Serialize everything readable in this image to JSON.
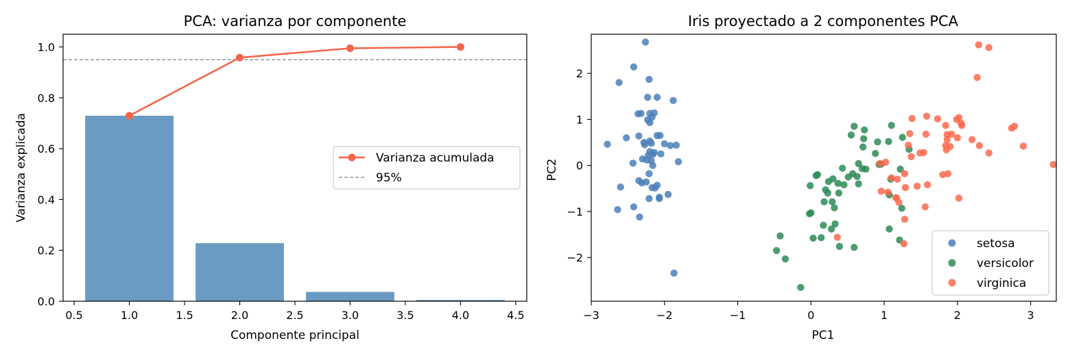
{
  "chart_data": [
    {
      "type": "bar",
      "title": "PCA: varianza por componente",
      "xlabel": "Componente principal",
      "ylabel": "Varianza explicada",
      "xlim": [
        0.4,
        4.6
      ],
      "ylim": [
        0,
        1.05
      ],
      "x_ticks": [
        "0.5",
        "1.0",
        "1.5",
        "2.0",
        "2.5",
        "3.0",
        "3.5",
        "4.0",
        "4.5"
      ],
      "y_ticks": [
        "0.0",
        "0.2",
        "0.4",
        "0.6",
        "0.8",
        "1.0"
      ],
      "categories": [
        1,
        2,
        3,
        4
      ],
      "series": [
        {
          "values": [
            0.7296,
            0.2285,
            0.0367,
            0.0052
          ],
          "color": "#4682b4"
        },
        {
          "name": "Varianza acumulada",
          "values": [
            0.7296,
            0.9581,
            0.9948,
            1.0
          ],
          "color": "#f4644a"
        }
      ],
      "reference_line": {
        "name": "95%",
        "value": 0.95,
        "color": "#808080"
      },
      "legend_position": "center-right"
    },
    {
      "type": "scatter",
      "title": "Iris proyectado a 2 componentes PCA",
      "xlabel": "PC1",
      "ylabel": "PC2",
      "xlim": [
        -3.0,
        3.35
      ],
      "ylim": [
        -2.95,
        2.85
      ],
      "x_ticks": [
        "−3",
        "−2",
        "−1",
        "0",
        "1",
        "2",
        "3"
      ],
      "y_ticks": [
        "−2",
        "−1",
        "0",
        "1",
        "2"
      ],
      "legend_position": "bottom-right",
      "series": [
        {
          "name": "setosa",
          "color": "#4c7fb8",
          "points": [
            [
              -2.26,
              2.68
            ],
            [
              -2.42,
              2.14
            ],
            [
              -2.62,
              1.8
            ],
            [
              -2.21,
              1.87
            ],
            [
              -2.32,
              1.13
            ],
            [
              -2.36,
              1.12
            ],
            [
              -2.2,
              1.13
            ],
            [
              -2.14,
              1.14
            ],
            [
              -2.23,
              1.48
            ],
            [
              -2.1,
              1.48
            ],
            [
              -1.88,
              1.41
            ],
            [
              -2.2,
              0.93
            ],
            [
              -2.23,
              0.99
            ],
            [
              -2.17,
              1.05
            ],
            [
              -2.35,
              0.64
            ],
            [
              -2.52,
              0.6
            ],
            [
              -2.78,
              0.46
            ],
            [
              -2.1,
              0.65
            ],
            [
              -2.06,
              0.65
            ],
            [
              -2.28,
              0.5
            ],
            [
              -2.27,
              0.45
            ],
            [
              -2.2,
              0.53
            ],
            [
              -2.18,
              0.48
            ],
            [
              -2.0,
              0.47
            ],
            [
              -1.92,
              0.43
            ],
            [
              -1.84,
              0.44
            ],
            [
              -2.05,
              0.25
            ],
            [
              -2.16,
              0.24
            ],
            [
              -2.22,
              0.22
            ],
            [
              -2.2,
              0.3
            ],
            [
              -2.14,
              0.28
            ],
            [
              -2.3,
              0.14
            ],
            [
              -2.24,
              0.12
            ],
            [
              -2.43,
              0.05
            ],
            [
              -2.18,
              0.1
            ],
            [
              -2.16,
              0.0
            ],
            [
              -1.81,
              0.08
            ],
            [
              -2.21,
              -0.18
            ],
            [
              -2.6,
              -0.47
            ],
            [
              -2.35,
              -0.33
            ],
            [
              -2.31,
              -0.38
            ],
            [
              -2.25,
              -0.36
            ],
            [
              -2.17,
              -0.48
            ],
            [
              -2.13,
              -0.49
            ],
            [
              -2.1,
              -0.43
            ],
            [
              -2.07,
              -0.69
            ],
            [
              -2.07,
              -0.72
            ],
            [
              -1.95,
              -0.63
            ],
            [
              -2.21,
              -0.72
            ],
            [
              -2.42,
              -0.9
            ],
            [
              -2.64,
              -0.96
            ],
            [
              -2.34,
              -1.12
            ],
            [
              -1.87,
              -2.34
            ]
          ]
        },
        {
          "name": "versicolor",
          "color": "#2e8b57",
          "points": [
            [
              0.59,
              0.85
            ],
            [
              0.73,
              0.77
            ],
            [
              1.1,
              0.87
            ],
            [
              0.55,
              0.66
            ],
            [
              0.72,
              0.58
            ],
            [
              1.25,
              0.61
            ],
            [
              0.91,
              0.51
            ],
            [
              1.06,
              0.52
            ],
            [
              0.71,
              0.4
            ],
            [
              1.34,
              0.35
            ],
            [
              0.88,
              0.26
            ],
            [
              0.96,
              0.03
            ],
            [
              0.93,
              0.02
            ],
            [
              0.65,
              0.04
            ],
            [
              0.43,
              -0.06
            ],
            [
              0.7,
              -0.07
            ],
            [
              0.75,
              -0.08
            ],
            [
              1.22,
              -0.08
            ],
            [
              0.57,
              -0.18
            ],
            [
              0.09,
              -0.2
            ],
            [
              0.07,
              -0.22
            ],
            [
              0.51,
              -0.25
            ],
            [
              0.63,
              -0.24
            ],
            [
              0.3,
              -0.29
            ],
            [
              0.24,
              -0.35
            ],
            [
              1.09,
              -0.3
            ],
            [
              0.65,
              -0.4
            ],
            [
              0.37,
              -0.39
            ],
            [
              0.45,
              -0.42
            ],
            [
              -0.01,
              -0.44
            ],
            [
              0.2,
              -0.53
            ],
            [
              0.23,
              -0.6
            ],
            [
              0.38,
              -0.6
            ],
            [
              1.07,
              -0.64
            ],
            [
              0.18,
              -0.79
            ],
            [
              0.29,
              -0.79
            ],
            [
              1.24,
              -0.93
            ],
            [
              0.32,
              -0.92
            ],
            [
              0.0,
              -1.03
            ],
            [
              -0.02,
              -1.05
            ],
            [
              0.17,
              -1.3
            ],
            [
              0.33,
              -1.27
            ],
            [
              0.28,
              -1.38
            ],
            [
              1.07,
              -1.38
            ],
            [
              0.14,
              -1.57
            ],
            [
              -0.42,
              -1.53
            ],
            [
              0.03,
              -1.58
            ],
            [
              0.39,
              -1.76
            ],
            [
              0.59,
              -1.78
            ],
            [
              1.21,
              -1.62
            ],
            [
              -0.47,
              -1.85
            ],
            [
              -0.35,
              -2.03
            ],
            [
              -0.14,
              -2.65
            ]
          ]
        },
        {
          "name": "virginica",
          "color": "#fa6a4e",
          "points": [
            [
              2.29,
              2.62
            ],
            [
              2.43,
              2.56
            ],
            [
              2.27,
              1.91
            ],
            [
              1.38,
              1.02
            ],
            [
              1.58,
              1.07
            ],
            [
              1.73,
              1.01
            ],
            [
              1.99,
              1.0
            ],
            [
              2.02,
              1.04
            ],
            [
              2.05,
              0.92
            ],
            [
              2.06,
              0.87
            ],
            [
              1.84,
              0.87
            ],
            [
              2.78,
              0.85
            ],
            [
              2.74,
              0.81
            ],
            [
              1.35,
              0.69
            ],
            [
              1.86,
              0.67
            ],
            [
              1.92,
              0.68
            ],
            [
              1.57,
              0.68
            ],
            [
              1.86,
              0.56
            ],
            [
              2.0,
              0.6
            ],
            [
              2.2,
              0.56
            ],
            [
              1.84,
              0.43
            ],
            [
              1.9,
              0.41
            ],
            [
              1.33,
              0.44
            ],
            [
              2.3,
              0.43
            ],
            [
              2.9,
              0.42
            ],
            [
              1.85,
              0.34
            ],
            [
              1.54,
              0.28
            ],
            [
              1.49,
              0.27
            ],
            [
              2.43,
              0.27
            ],
            [
              1.37,
              0.19
            ],
            [
              1.02,
              0.07
            ],
            [
              0.94,
              0.04
            ],
            [
              3.31,
              0.02
            ],
            [
              1.8,
              -0.2
            ],
            [
              1.87,
              -0.18
            ],
            [
              1.28,
              -0.18
            ],
            [
              1.1,
              -0.27
            ],
            [
              1.18,
              -0.3
            ],
            [
              1.45,
              -0.45
            ],
            [
              1.59,
              -0.42
            ],
            [
              1.29,
              -0.48
            ],
            [
              0.96,
              -0.56
            ],
            [
              1.05,
              -0.58
            ],
            [
              1.16,
              -0.7
            ],
            [
              1.17,
              -0.71
            ],
            [
              1.2,
              -0.8
            ],
            [
              1.56,
              -0.9
            ],
            [
              2.02,
              -0.71
            ],
            [
              1.28,
              -1.17
            ],
            [
              0.36,
              -1.56
            ],
            [
              1.27,
              -1.7
            ]
          ]
        }
      ]
    }
  ]
}
